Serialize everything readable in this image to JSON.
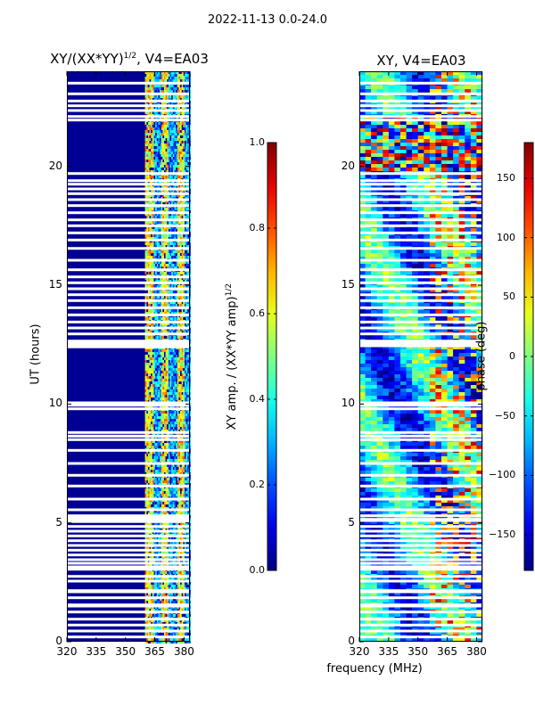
{
  "suptitle": "2022-11-13 0.0-24.0",
  "xlabel": "frequency (MHz)",
  "colors": {
    "low": "#00008f",
    "mid": "#7fff7f",
    "high": "#800000"
  },
  "chart_data": [
    {
      "type": "heatmap",
      "title": "XY/(XX*YY)^1/2, V4=EA03",
      "title_main": "XY/(XX*YY)",
      "title_sup": "1/2",
      "title_rest": ", V4=EA03",
      "xlabel": "frequency (MHz)",
      "ylabel": "UT (hours)",
      "xlim": [
        320,
        383
      ],
      "ylim": [
        0,
        24
      ],
      "xticks": [
        320,
        335,
        350,
        365,
        380
      ],
      "yticks": [
        0,
        5,
        10,
        15,
        20
      ],
      "rfi_band_mhz": [
        360,
        383
      ],
      "colorbar": {
        "label": "XY amp. / (XX*YY amp)^1/2",
        "label_main": "XY amp. / (XX*YY amp)",
        "label_sup": "1/2",
        "range": [
          0.0,
          1.0
        ],
        "ticks": [
          "0.0",
          "0.2",
          "0.4",
          "0.6",
          "0.8",
          "1.0"
        ],
        "tick_values": [
          0.0,
          0.2,
          0.4,
          0.6,
          0.8,
          1.0
        ]
      }
    },
    {
      "type": "heatmap",
      "title": "XY, V4=EA03",
      "xlabel": "frequency (MHz)",
      "ylabel": "",
      "xlim": [
        320,
        383
      ],
      "ylim": [
        0,
        24
      ],
      "xticks": [
        320,
        335,
        350,
        365,
        380
      ],
      "yticks": [
        0,
        5,
        10,
        15,
        20
      ],
      "noisy_interval_hours": [
        19.8,
        22.2
      ],
      "colorbar": {
        "label": "phase (deg)",
        "range": [
          -180,
          180
        ],
        "ticks": [
          "150",
          "100",
          "50",
          "0",
          "−50",
          "−100",
          "−150"
        ],
        "tick_values": [
          150,
          100,
          50,
          0,
          -50,
          -100,
          -150
        ]
      }
    }
  ],
  "missing_ut_hours": [
    0.2,
    0.45,
    0.7,
    0.95,
    1.25,
    1.5,
    1.55,
    1.85,
    2.1,
    2.15,
    2.55,
    2.75,
    3.05,
    3.15,
    3.3,
    3.45,
    3.65,
    3.85,
    4.05,
    4.25,
    4.45,
    4.65,
    4.85,
    5.1,
    5.15,
    5.3,
    5.55,
    6.0,
    6.55,
    7.0,
    7.5,
    8.05,
    8.5,
    8.65,
    8.8,
    9.8,
    9.95,
    10.05,
    12.45,
    12.55,
    12.65,
    12.95,
    13.2,
    13.45,
    13.75,
    14.05,
    14.35,
    14.6,
    14.85,
    15.1,
    15.35,
    15.65,
    16.05,
    16.55,
    16.9,
    17.2,
    17.5,
    17.75,
    18.05,
    18.35,
    18.6,
    18.85,
    19.05,
    19.25,
    19.4,
    19.7,
    21.95,
    22.1,
    22.35,
    22.55,
    22.75,
    23.05,
    23.5
  ]
}
